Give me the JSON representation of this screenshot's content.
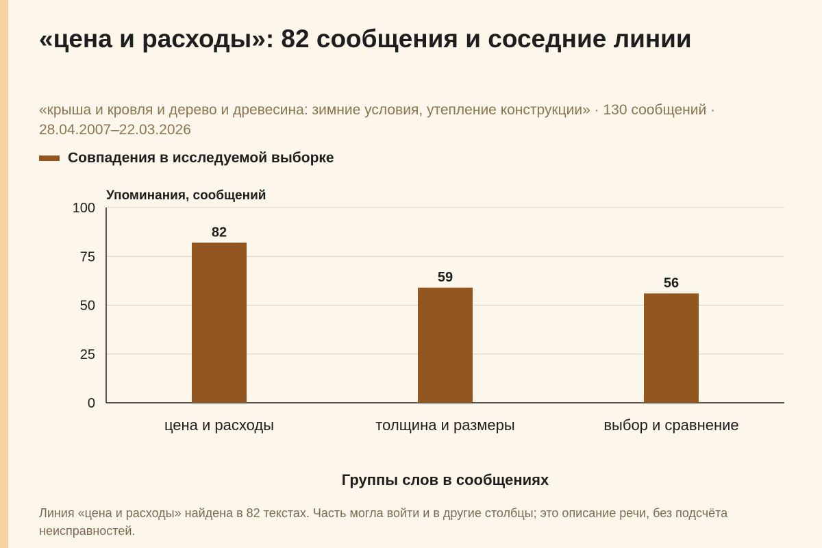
{
  "title": "«цена и расходы»: 82 сообщения и соседние линии",
  "subtitle": "«крыша и кровля и дерево и древесина: зимние условия, утепление конструкции» · 130 сообщений · 28.04.2007–22.03.2026",
  "footnote": "Линия «цена и расходы» найдена в 82 текстах. Часть могла войти и в другие столбцы; это описание речи, без подсчёта неисправностей.",
  "colors": {
    "bar": "#925620",
    "accent_stripe": "#f5d3a0",
    "background": "#fdf6ea"
  },
  "chart_data": {
    "type": "bar",
    "categories": [
      "цена и расходы",
      "толщина и размеры",
      "выбор и сравнение"
    ],
    "series": [
      {
        "name": "Совпадения в исследуемой выборке",
        "values": [
          82,
          59,
          56
        ]
      }
    ],
    "ylabel": "Упоминания, сообщений",
    "xlabel": "Группы слов в сообщениях",
    "ylim": [
      0,
      100
    ],
    "yticks": [
      0,
      25,
      50,
      75,
      100
    ],
    "grid": true,
    "legend_position": "top-left"
  }
}
